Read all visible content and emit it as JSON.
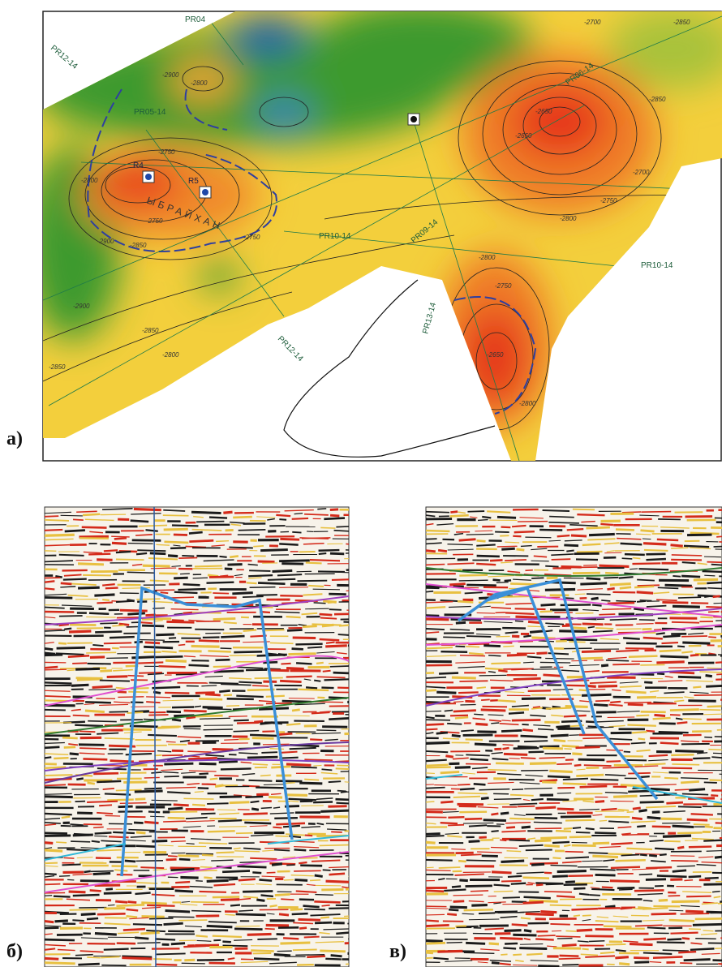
{
  "panel_a": {
    "label": "а)",
    "profiles": [
      "PR04",
      "PR12-14",
      "PR05-14",
      "PR06-14",
      "PR10-14",
      "PR09-14",
      "PR13-14",
      "PR12-14",
      "PR10-14"
    ],
    "wells": [
      "R4",
      "R5"
    ],
    "structure": "ЫБРАЙХАН",
    "contours": [
      "-2900",
      "-2800",
      "-2750",
      "-2800",
      "-2900",
      "-2750",
      "-2850",
      "-2900",
      "-2850",
      "-2800",
      "-2850",
      "-2750",
      "-2650",
      "-2700",
      "-2750",
      "-2850",
      "-2650",
      "-2800",
      "-2700",
      "-2850",
      "-2800",
      "-2750",
      "-2650",
      "-2800"
    ]
  },
  "panel_b": {
    "label": "б)"
  },
  "panel_c": {
    "label": "в)"
  }
}
